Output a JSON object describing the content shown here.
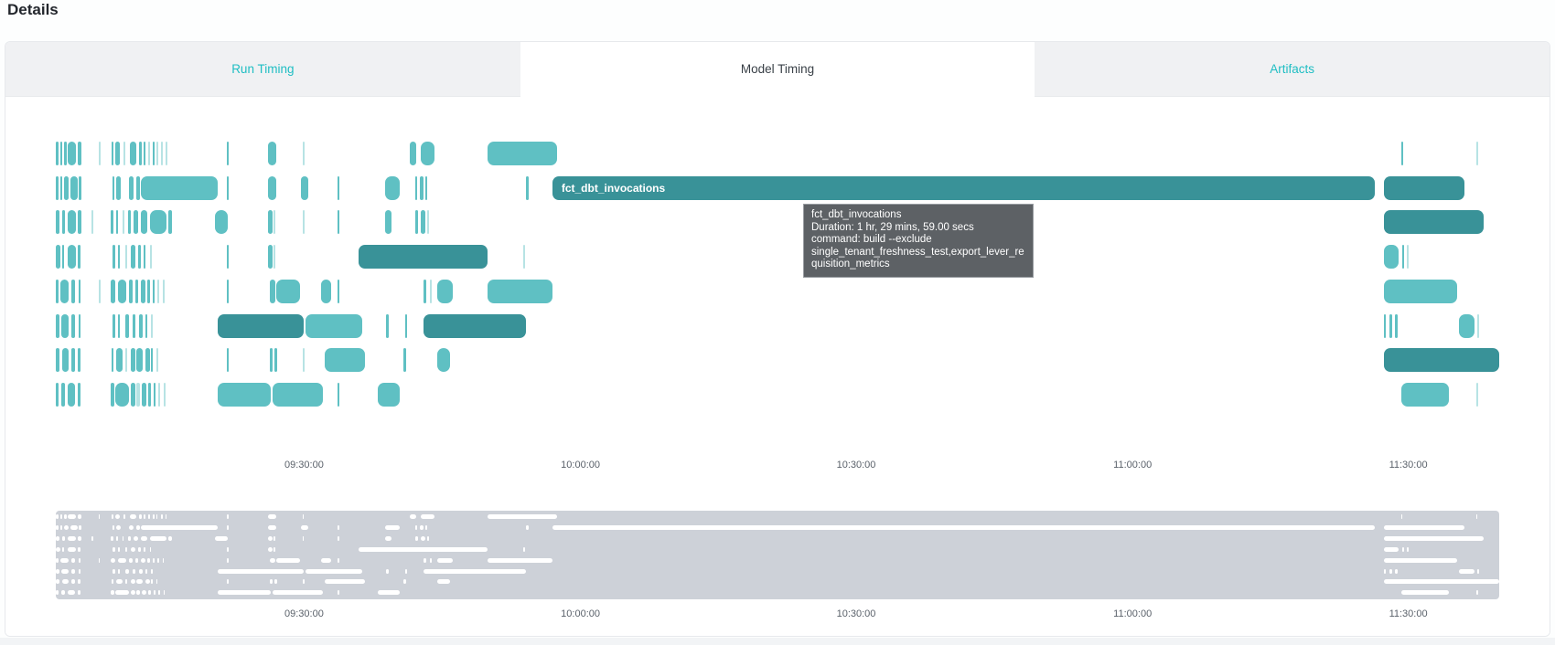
{
  "page": {
    "title": "Details"
  },
  "tabs": [
    {
      "label": "Run Timing",
      "active": false
    },
    {
      "label": "Model Timing",
      "active": true
    },
    {
      "label": "Artifacts",
      "active": false
    }
  ],
  "tooltip": {
    "title": "fct_dbt_invocations",
    "duration": "Duration: 1 hr, 29 mins, 59.00 secs",
    "command": "command: build --exclude single_tenant_freshness_test,export_lever_requisition_metrics"
  },
  "colors": {
    "bar_light": "#5fc0c3",
    "bar_dark": "#399298",
    "tab_accent": "#1fbec3",
    "minimap_bg": "#cdd1d8",
    "minimap_bar": "#ffffff",
    "tooltip_bg": "#5d6165"
  },
  "chart_data": {
    "type": "gantt",
    "title": "Model Timing",
    "x_axis": {
      "tick_labels": [
        "09:30:00",
        "10:00:00",
        "10:30:00",
        "11:00:00",
        "11:30:00"
      ],
      "tick_pct": [
        17.2,
        36.35,
        55.45,
        74.6,
        93.7
      ],
      "visible_range": [
        "09:03:00",
        "11:40:00"
      ]
    },
    "labeled_bar": {
      "row": 1,
      "label": "fct_dbt_invocations",
      "start_pct": 34.4,
      "width_pct": 57.0,
      "shade": "d",
      "duration": "1 hr, 29 mins, 59.00 secs",
      "command": "build --exclude single_tenant_freshness_test,export_lever_requisition_metrics"
    },
    "legend": "segments are [start_pct, width_pct, shade]; shade l=light teal, d=dark teal, f=faint",
    "rows": [
      {
        "segments": [
          [
            0,
            0.22,
            "l"
          ],
          [
            0.3,
            0.14,
            "l"
          ],
          [
            0.55,
            0.18,
            "l"
          ],
          [
            0.85,
            0.55,
            "l"
          ],
          [
            1.5,
            0.25,
            "l"
          ],
          [
            2.95,
            0.1,
            "f"
          ],
          [
            3.85,
            0.16,
            "l"
          ],
          [
            4.15,
            0.3,
            "l"
          ],
          [
            4.7,
            0.12,
            "f"
          ],
          [
            5.15,
            0.45,
            "l"
          ],
          [
            5.75,
            0.2,
            "l"
          ],
          [
            6.1,
            0.14,
            "l"
          ],
          [
            6.4,
            0.12,
            "f"
          ],
          [
            6.7,
            0.12,
            "l"
          ],
          [
            6.95,
            0.1,
            "f"
          ],
          [
            7.3,
            0.1,
            "f"
          ],
          [
            7.6,
            0.08,
            "f"
          ],
          [
            11.85,
            0.14,
            "l"
          ],
          [
            14.7,
            0.6,
            "l"
          ],
          [
            17.1,
            0.1,
            "f"
          ],
          [
            24.5,
            0.5,
            "l"
          ],
          [
            25.3,
            0.95,
            "l"
          ],
          [
            29.9,
            4.8,
            "l"
          ],
          [
            93.2,
            0.1,
            "l"
          ],
          [
            98.4,
            0.1,
            "f"
          ]
        ]
      },
      {
        "segments": [
          [
            0,
            0.22,
            "l"
          ],
          [
            0.32,
            0.14,
            "l"
          ],
          [
            0.6,
            0.3,
            "l"
          ],
          [
            1.0,
            0.5,
            "l"
          ],
          [
            1.6,
            0.2,
            "l"
          ],
          [
            3.9,
            0.16,
            "l"
          ],
          [
            4.2,
            0.3,
            "l"
          ],
          [
            5.1,
            0.3,
            "l"
          ],
          [
            5.55,
            0.25,
            "l"
          ],
          [
            5.9,
            5.3,
            "l"
          ],
          [
            11.85,
            0.14,
            "l"
          ],
          [
            14.7,
            0.55,
            "l"
          ],
          [
            17.0,
            0.5,
            "l"
          ],
          [
            19.5,
            0.14,
            "l"
          ],
          [
            22.8,
            1.0,
            "l"
          ],
          [
            24.9,
            0.16,
            "l"
          ],
          [
            25.2,
            0.3,
            "l"
          ],
          [
            25.6,
            0.14,
            "l"
          ],
          [
            32.6,
            0.14,
            "l"
          ],
          [
            92.0,
            5.6,
            "d"
          ]
        ]
      },
      {
        "segments": [
          [
            0,
            0.26,
            "l"
          ],
          [
            0.45,
            0.18,
            "l"
          ],
          [
            0.8,
            0.6,
            "l"
          ],
          [
            1.55,
            0.2,
            "l"
          ],
          [
            2.5,
            0.1,
            "f"
          ],
          [
            3.8,
            0.2,
            "l"
          ],
          [
            4.2,
            0.14,
            "l"
          ],
          [
            4.6,
            0.12,
            "f"
          ],
          [
            5.0,
            0.2,
            "l"
          ],
          [
            5.4,
            0.3,
            "l"
          ],
          [
            5.9,
            0.45,
            "l"
          ],
          [
            6.55,
            1.15,
            "l"
          ],
          [
            7.8,
            0.25,
            "l"
          ],
          [
            11.0,
            0.9,
            "l"
          ],
          [
            14.7,
            0.35,
            "l"
          ],
          [
            15.1,
            0.12,
            "f"
          ],
          [
            17.1,
            0.1,
            "f"
          ],
          [
            19.5,
            0.14,
            "l"
          ],
          [
            22.8,
            0.45,
            "l"
          ],
          [
            24.9,
            0.2,
            "l"
          ],
          [
            25.3,
            0.3,
            "l"
          ],
          [
            25.7,
            0.14,
            "f"
          ],
          [
            92.0,
            6.9,
            "d"
          ]
        ]
      },
      {
        "segments": [
          [
            0,
            0.3,
            "l"
          ],
          [
            0.45,
            0.14,
            "l"
          ],
          [
            0.85,
            0.55,
            "l"
          ],
          [
            1.55,
            0.14,
            "l"
          ],
          [
            3.9,
            0.2,
            "l"
          ],
          [
            4.3,
            0.14,
            "l"
          ],
          [
            4.8,
            0.14,
            "f"
          ],
          [
            5.2,
            0.3,
            "l"
          ],
          [
            5.7,
            0.2,
            "l"
          ],
          [
            6.1,
            0.14,
            "l"
          ],
          [
            6.5,
            0.1,
            "f"
          ],
          [
            11.85,
            0.14,
            "l"
          ],
          [
            14.7,
            0.3,
            "l"
          ],
          [
            15.1,
            0.12,
            "f"
          ],
          [
            21.0,
            8.9,
            "d"
          ],
          [
            32.4,
            0.1,
            "f"
          ],
          [
            92.0,
            1.0,
            "l"
          ],
          [
            93.3,
            0.12,
            "l"
          ],
          [
            93.6,
            0.1,
            "f"
          ]
        ]
      },
      {
        "segments": [
          [
            0,
            0.2,
            "l"
          ],
          [
            0.32,
            0.55,
            "l"
          ],
          [
            1.05,
            0.3,
            "l"
          ],
          [
            1.6,
            0.14,
            "l"
          ],
          [
            2.95,
            0.1,
            "f"
          ],
          [
            3.8,
            0.3,
            "l"
          ],
          [
            4.3,
            0.6,
            "l"
          ],
          [
            5.05,
            0.3,
            "l"
          ],
          [
            5.5,
            0.2,
            "l"
          ],
          [
            5.9,
            0.3,
            "l"
          ],
          [
            6.35,
            0.2,
            "l"
          ],
          [
            6.7,
            0.14,
            "l"
          ],
          [
            7.05,
            0.12,
            "f"
          ],
          [
            7.4,
            0.1,
            "f"
          ],
          [
            11.85,
            0.14,
            "l"
          ],
          [
            14.8,
            0.4,
            "l"
          ],
          [
            15.3,
            1.6,
            "l"
          ],
          [
            18.4,
            0.7,
            "l"
          ],
          [
            19.5,
            0.14,
            "l"
          ],
          [
            25.5,
            0.16,
            "l"
          ],
          [
            25.9,
            0.14,
            "f"
          ],
          [
            26.4,
            1.1,
            "l"
          ],
          [
            29.9,
            4.5,
            "l"
          ],
          [
            92.0,
            5.1,
            "l"
          ]
        ]
      },
      {
        "segments": [
          [
            0,
            0.24,
            "l"
          ],
          [
            0.4,
            0.5,
            "l"
          ],
          [
            1.05,
            0.3,
            "l"
          ],
          [
            1.6,
            0.14,
            "l"
          ],
          [
            3.9,
            0.2,
            "l"
          ],
          [
            4.3,
            0.14,
            "l"
          ],
          [
            4.8,
            0.3,
            "l"
          ],
          [
            5.3,
            0.2,
            "l"
          ],
          [
            5.75,
            0.3,
            "l"
          ],
          [
            6.2,
            0.14,
            "l"
          ],
          [
            6.6,
            0.12,
            "f"
          ],
          [
            11.2,
            6.0,
            "d"
          ],
          [
            17.3,
            3.9,
            "l"
          ],
          [
            22.9,
            0.14,
            "l"
          ],
          [
            24.2,
            0.14,
            "l"
          ],
          [
            25.5,
            7.1,
            "d"
          ],
          [
            92.0,
            0.14,
            "l"
          ],
          [
            92.4,
            0.2,
            "l"
          ],
          [
            92.8,
            0.14,
            "l"
          ],
          [
            97.2,
            1.1,
            "l"
          ],
          [
            98.5,
            0.1,
            "f"
          ]
        ]
      },
      {
        "segments": [
          [
            0,
            0.24,
            "l"
          ],
          [
            0.45,
            0.45,
            "l"
          ],
          [
            1.05,
            0.25,
            "l"
          ],
          [
            1.55,
            0.14,
            "l"
          ],
          [
            3.85,
            0.16,
            "l"
          ],
          [
            4.2,
            0.4,
            "l"
          ],
          [
            4.8,
            0.14,
            "f"
          ],
          [
            5.2,
            0.3,
            "l"
          ],
          [
            5.6,
            0.45,
            "l"
          ],
          [
            6.2,
            0.3,
            "l"
          ],
          [
            6.6,
            0.14,
            "l"
          ],
          [
            6.95,
            0.1,
            "f"
          ],
          [
            11.85,
            0.14,
            "l"
          ],
          [
            14.8,
            0.2,
            "l"
          ],
          [
            15.15,
            0.16,
            "l"
          ],
          [
            17.1,
            0.12,
            "f"
          ],
          [
            18.6,
            2.8,
            "l"
          ],
          [
            24.1,
            0.14,
            "l"
          ],
          [
            26.4,
            0.9,
            "l"
          ],
          [
            92.0,
            8.0,
            "d"
          ]
        ]
      },
      {
        "segments": [
          [
            0,
            0.2,
            "l"
          ],
          [
            0.35,
            0.3,
            "l"
          ],
          [
            0.8,
            0.55,
            "l"
          ],
          [
            1.5,
            0.2,
            "l"
          ],
          [
            3.8,
            0.25,
            "l"
          ],
          [
            4.15,
            0.9,
            "l"
          ],
          [
            5.2,
            0.3,
            "l"
          ],
          [
            5.6,
            0.2,
            "f"
          ],
          [
            5.95,
            0.3,
            "l"
          ],
          [
            6.4,
            0.2,
            "l"
          ],
          [
            6.75,
            0.14,
            "l"
          ],
          [
            7.1,
            0.12,
            "f"
          ],
          [
            7.45,
            0.1,
            "f"
          ],
          [
            11.2,
            3.7,
            "l"
          ],
          [
            15.0,
            3.5,
            "l"
          ],
          [
            19.5,
            0.14,
            "l"
          ],
          [
            22.3,
            1.5,
            "l"
          ],
          [
            93.2,
            3.3,
            "l"
          ],
          [
            98.4,
            0.12,
            "f"
          ]
        ]
      }
    ],
    "minimap": {
      "mirrors_rows": true,
      "axis_tick_labels": [
        "09:30:00",
        "10:00:00",
        "10:30:00",
        "11:00:00",
        "11:30:00"
      ]
    }
  }
}
